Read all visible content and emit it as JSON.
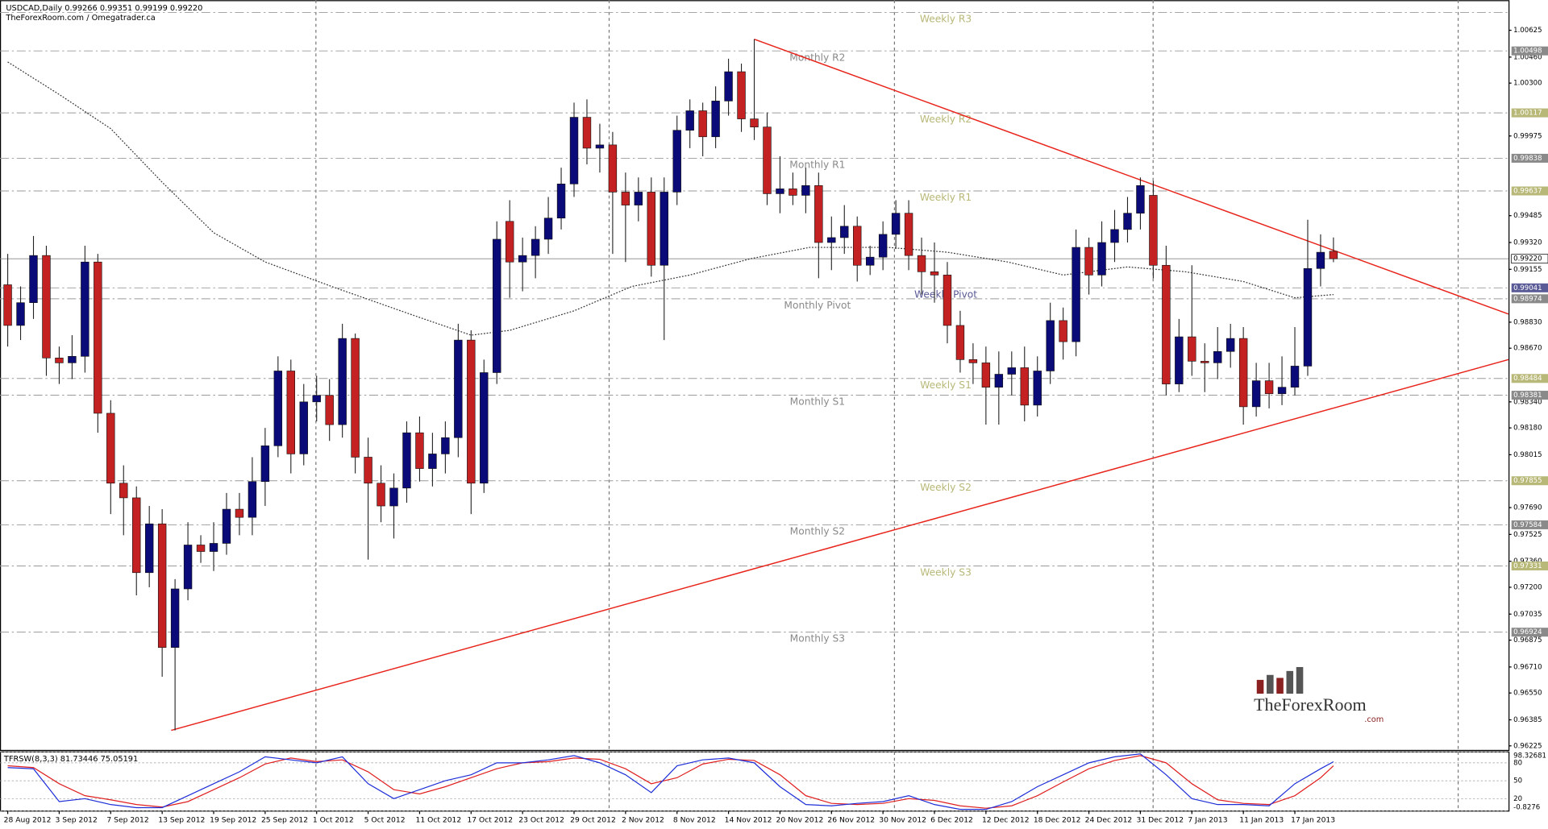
{
  "chart_data": {
    "type": "candlestick",
    "title": "USDCAD,Daily  0.99266 0.99351 0.99199 0.99220",
    "subtitle": "TheForexRoom.com / Omegatrader.ca",
    "logo": {
      "name": "TheForexRoom",
      "suffix": ".com"
    },
    "up_color": "#0a0a78",
    "down_color": "#c42222",
    "xlim": [
      -0.6,
      116.6
    ],
    "ylim": [
      0.962,
      1.0081
    ],
    "xticks": [
      {
        "value": 0,
        "label": "28 Aug 2012"
      },
      {
        "value": 4,
        "label": "3 Sep 2012"
      },
      {
        "value": 8,
        "label": "7 Sep 2012"
      },
      {
        "value": 12,
        "label": "13 Sep 2012"
      },
      {
        "value": 16,
        "label": "19 Sep 2012"
      },
      {
        "value": 20,
        "label": "25 Sep 2012"
      },
      {
        "value": 24,
        "label": "1 Oct 2012"
      },
      {
        "value": 28,
        "label": "5 Oct 2012"
      },
      {
        "value": 32,
        "label": "11 Oct 2012"
      },
      {
        "value": 36,
        "label": "17 Oct 2012"
      },
      {
        "value": 40,
        "label": "23 Oct 2012"
      },
      {
        "value": 44,
        "label": "29 Oct 2012"
      },
      {
        "value": 48,
        "label": "2 Nov 2012"
      },
      {
        "value": 52,
        "label": "8 Nov 2012"
      },
      {
        "value": 56,
        "label": "14 Nov 2012"
      },
      {
        "value": 60,
        "label": "20 Nov 2012"
      },
      {
        "value": 64,
        "label": "26 Nov 2012"
      },
      {
        "value": 68,
        "label": "30 Nov 2012"
      },
      {
        "value": 72,
        "label": "6 Dec 2012"
      },
      {
        "value": 76,
        "label": "12 Dec 2012"
      },
      {
        "value": 80,
        "label": "18 Dec 2012"
      },
      {
        "value": 84,
        "label": "24 Dec 2012"
      },
      {
        "value": 88,
        "label": "31 Dec 2012"
      },
      {
        "value": 92,
        "label": "7 Jan 2013"
      },
      {
        "value": 96,
        "label": "11 Jan 2013"
      },
      {
        "value": 100,
        "label": "17 Jan 2013"
      }
    ],
    "yticks": [
      1.00625,
      {
        "value": 1.0046,
        "label": "1.00460"
      },
      {
        "value": 1.003,
        "label": "1.00300"
      },
      0.99975,
      0.99485,
      {
        "value": 0.9932,
        "label": "0.99320"
      },
      0.99155,
      {
        "value": 0.9883,
        "label": "0.98830"
      },
      {
        "value": 0.9867,
        "label": "0.98670"
      },
      {
        "value": 0.9834,
        "label": "0.98340"
      },
      {
        "value": 0.9818,
        "label": "0.98180"
      },
      0.98015,
      {
        "value": 0.9769,
        "label": "0.97690"
      },
      0.97525,
      {
        "value": 0.9736,
        "label": "0.97360"
      },
      {
        "value": 0.972,
        "label": "0.97200"
      },
      0.97035,
      0.96875,
      {
        "value": 0.9671,
        "label": "0.96710"
      },
      {
        "value": 0.9655,
        "label": "0.96550"
      },
      0.96385,
      0.96225
    ],
    "open": [
      0.9906,
      0.9881,
      0.9895,
      0.9924,
      0.9861,
      0.9858,
      0.9862,
      0.992,
      0.9827,
      0.9784,
      0.9775,
      0.9729,
      0.9759,
      0.9683,
      0.9719,
      0.9746,
      0.9742,
      0.9747,
      0.9768,
      0.9763,
      0.9785,
      0.9807,
      0.9853,
      0.9802,
      0.9834,
      0.9838,
      0.982,
      0.9873,
      0.98,
      0.9784,
      0.977,
      0.9781,
      0.9815,
      0.9793,
      0.9802,
      0.9812,
      0.9872,
      0.9784,
      0.9852,
      0.9945,
      0.992,
      0.9924,
      0.9934,
      0.9947,
      0.9968,
      1.0009,
      0.999,
      0.9992,
      0.9963,
      0.9955,
      0.9963,
      0.9918,
      0.9963,
      1.0001,
      1.0013,
      0.9997,
      1.0019,
      1.0037,
      1.0008,
      1.0003,
      0.9962,
      0.9965,
      0.9961,
      0.9967,
      0.9932,
      0.9935,
      0.9942,
      0.9918,
      0.9923,
      0.9937,
      0.995,
      0.9924,
      0.9914,
      0.9912,
      0.9881,
      0.986,
      0.9858,
      0.9843,
      0.9851,
      0.9855,
      0.9832,
      0.9853,
      0.9884,
      0.9871,
      0.9929,
      0.9912,
      0.9932,
      0.994,
      0.995,
      0.9961,
      0.9918,
      0.9845,
      0.9874,
      0.9859,
      0.9858,
      0.9865,
      0.9873,
      0.9831,
      0.9847,
      0.9839,
      0.9843,
      0.9856,
      0.9916,
      0.99266
    ],
    "high": [
      0.9925,
      0.9905,
      0.9936,
      0.993,
      0.9868,
      0.9875,
      0.993,
      0.9925,
      0.9835,
      0.9795,
      0.9782,
      0.977,
      0.9768,
      0.9725,
      0.976,
      0.9752,
      0.976,
      0.9778,
      0.9778,
      0.98,
      0.9818,
      0.9862,
      0.986,
      0.9845,
      0.985,
      0.9848,
      0.9882,
      0.9876,
      0.9812,
      0.9795,
      0.979,
      0.9822,
      0.9825,
      0.9815,
      0.9822,
      0.9882,
      0.9878,
      0.986,
      0.9945,
      0.9958,
      0.9935,
      0.9942,
      0.996,
      0.9978,
      1.0018,
      1.002,
      1.0005,
      1.0,
      0.9975,
      0.9972,
      0.9972,
      0.9972,
      1.001,
      1.002,
      1.0018,
      1.0028,
      1.0045,
      1.0042,
      1.0057,
      1.0012,
      0.9985,
      0.9975,
      0.9978,
      0.9975,
      0.9948,
      0.9955,
      0.9948,
      0.993,
      0.9945,
      0.9958,
      0.9958,
      0.9935,
      0.9932,
      0.992,
      0.989,
      0.987,
      0.9868,
      0.9865,
      0.9865,
      0.9868,
      0.9862,
      0.9895,
      0.9892,
      0.994,
      0.9935,
      0.9945,
      0.9952,
      0.996,
      0.9972,
      0.997,
      0.993,
      0.9885,
      0.9918,
      0.987,
      0.988,
      0.9882,
      0.988,
      0.9858,
      0.9858,
      0.9862,
      0.988,
      0.9946,
      0.9937,
      0.99351
    ],
    "low": [
      0.9868,
      0.9872,
      0.9885,
      0.985,
      0.9845,
      0.9848,
      0.9852,
      0.9815,
      0.9765,
      0.9752,
      0.9715,
      0.972,
      0.9665,
      0.9632,
      0.9712,
      0.9735,
      0.973,
      0.974,
      0.9752,
      0.9752,
      0.977,
      0.98,
      0.979,
      0.9795,
      0.9822,
      0.981,
      0.9812,
      0.979,
      0.9737,
      0.976,
      0.975,
      0.9772,
      0.9785,
      0.9782,
      0.979,
      0.98,
      0.9765,
      0.9778,
      0.9845,
      0.9898,
      0.9902,
      0.991,
      0.9925,
      0.994,
      0.996,
      0.998,
      0.9975,
      0.9925,
      0.992,
      0.9945,
      0.9911,
      0.9872,
      0.9955,
      0.999,
      0.9985,
      0.999,
      1.001,
      1.0,
      0.9995,
      0.9955,
      0.995,
      0.9955,
      0.995,
      0.991,
      0.9915,
      0.9925,
      0.9908,
      0.9912,
      0.9915,
      0.9928,
      0.9915,
      0.99,
      0.9895,
      0.987,
      0.9852,
      0.9845,
      0.982,
      0.982,
      0.9838,
      0.9822,
      0.9825,
      0.9845,
      0.986,
      0.9862,
      0.99,
      0.9905,
      0.992,
      0.9932,
      0.994,
      0.991,
      0.9838,
      0.984,
      0.985,
      0.984,
      0.9848,
      0.9855,
      0.982,
      0.9825,
      0.983,
      0.9832,
      0.9838,
      0.985,
      0.9905,
      0.99199
    ],
    "close": [
      0.9881,
      0.9895,
      0.9924,
      0.9861,
      0.9858,
      0.9862,
      0.992,
      0.9827,
      0.9784,
      0.9775,
      0.9729,
      0.9759,
      0.9683,
      0.9719,
      0.9746,
      0.9742,
      0.9747,
      0.9768,
      0.9763,
      0.9785,
      0.9807,
      0.9853,
      0.9802,
      0.9834,
      0.9838,
      0.982,
      0.9873,
      0.98,
      0.9784,
      0.977,
      0.9781,
      0.9815,
      0.9793,
      0.9802,
      0.9812,
      0.9872,
      0.9784,
      0.9852,
      0.9934,
      0.992,
      0.9924,
      0.9934,
      0.9947,
      0.9968,
      1.0009,
      0.999,
      0.9992,
      0.9963,
      0.9955,
      0.9963,
      0.9918,
      0.9963,
      1.0001,
      1.0013,
      0.9997,
      1.0019,
      1.0037,
      1.0008,
      1.0003,
      0.9962,
      0.9965,
      0.9961,
      0.9967,
      0.9932,
      0.9935,
      0.9942,
      0.9918,
      0.9923,
      0.9937,
      0.995,
      0.9924,
      0.9914,
      0.9912,
      0.9881,
      0.986,
      0.9858,
      0.9843,
      0.9851,
      0.9855,
      0.9832,
      0.9853,
      0.9884,
      0.9871,
      0.9929,
      0.9912,
      0.9932,
      0.994,
      0.995,
      0.9967,
      0.9918,
      0.9845,
      0.9874,
      0.9859,
      0.9858,
      0.9865,
      0.9873,
      0.9831,
      0.9847,
      0.9839,
      0.9843,
      0.9856,
      0.9916,
      0.9926,
      0.9922
    ],
    "ma": {
      "color": "#333333",
      "x": [
        0,
        4,
        8,
        12,
        16,
        20,
        25.5,
        31.6,
        36,
        39,
        44,
        48.5,
        53,
        57.7,
        62.3,
        68.4,
        73,
        77.7,
        82,
        87,
        91.5,
        96,
        100,
        103
      ],
      "values": [
        1.0043,
        1.0023,
        1.0002,
        0.9969,
        0.9938,
        0.992,
        0.9904,
        0.9887,
        0.9875,
        0.9878,
        0.989,
        0.9905,
        0.9912,
        0.9922,
        0.9929,
        0.9929,
        0.9926,
        0.992,
        0.9912,
        0.9917,
        0.9914,
        0.9908,
        0.9898,
        0.99
      ]
    },
    "trendlines": [
      {
        "color": "#e8231a",
        "x": [
          58,
          116.6
        ],
        "values": [
          1.0057,
          0.9888
        ]
      },
      {
        "color": "#e8231a",
        "x": [
          12.7,
          116.6
        ],
        "values": [
          0.9632,
          0.986
        ]
      }
    ],
    "last_price": {
      "value": 0.9922,
      "label": "0.99220"
    },
    "levels": [
      {
        "name": "Weekly R3",
        "value": 1.00734,
        "color": "#b8b878"
      },
      {
        "name": "Monthly R2",
        "value": 1.00498,
        "label": "1.00498",
        "color": "#8a8a8a"
      },
      {
        "name": "Weekly R2",
        "value": 1.00117,
        "label": "1.00117",
        "color": "#b8b878"
      },
      {
        "name": "Monthly R1",
        "value": 0.99838,
        "label": "0.99838",
        "color": "#8a8a8a"
      },
      {
        "name": "Weekly R1",
        "value": 0.99637,
        "label": "0.99637",
        "color": "#b8b878"
      },
      {
        "name": "Weekly Pivot",
        "value": 0.99041,
        "label": "0.99041",
        "color": "#5a5a96"
      },
      {
        "name": "Monthly Pivot",
        "value": 0.98974,
        "label": "0.98974",
        "color": "#8a8a8a"
      },
      {
        "name": "Weekly S1",
        "value": 0.98484,
        "label": "0.98484",
        "color": "#b8b878"
      },
      {
        "name": "Monthly S1",
        "value": 0.98381,
        "label": "0.98381",
        "color": "#8a8a8a"
      },
      {
        "name": "Weekly S2",
        "value": 0.97855,
        "label": "0.97855",
        "color": "#b8b878"
      },
      {
        "name": "Monthly S2",
        "value": 0.97584,
        "label": "0.97584",
        "color": "#8a8a8a"
      },
      {
        "name": "Weekly S3",
        "value": 0.97331,
        "label": "0.97331",
        "color": "#b8b878"
      },
      {
        "name": "Monthly S3",
        "value": 0.96924,
        "label": "0.96924",
        "color": "#8a8a8a"
      }
    ],
    "stochastic": {
      "title": "TFRSW(8,3,3) 81.73446 75.05191",
      "ylim": [
        -0.8276,
        98.32681
      ],
      "yticks": [
        98.32681,
        80,
        50,
        20,
        {
          "value": -0.8276,
          "label": "-0.8276"
        }
      ],
      "k_color": "#1f2fd8",
      "d_color": "#e02020",
      "x": [
        0,
        2,
        4,
        6,
        8,
        10,
        12,
        14,
        16,
        18,
        20,
        22,
        24,
        26,
        28,
        30,
        32,
        34,
        36,
        38,
        40,
        42,
        44,
        46,
        48,
        50,
        52,
        54,
        56,
        58,
        60,
        62,
        64,
        66,
        68,
        70,
        72,
        74,
        76,
        78,
        80,
        82,
        84,
        86,
        88,
        90,
        92,
        94,
        96,
        98,
        100,
        102,
        103
      ],
      "k": [
        72,
        70,
        15,
        20,
        10,
        5,
        5,
        25,
        45,
        65,
        90,
        85,
        80,
        90,
        45,
        20,
        35,
        50,
        60,
        80,
        80,
        85,
        92,
        80,
        60,
        30,
        75,
        85,
        88,
        80,
        40,
        10,
        8,
        12,
        15,
        25,
        10,
        2,
        2,
        15,
        40,
        60,
        80,
        90,
        95,
        60,
        20,
        10,
        10,
        8,
        45,
        70,
        81.73446
      ],
      "d": [
        75,
        72,
        45,
        25,
        18,
        10,
        6,
        15,
        35,
        55,
        78,
        88,
        82,
        85,
        65,
        35,
        28,
        40,
        55,
        70,
        80,
        82,
        88,
        86,
        70,
        45,
        55,
        78,
        86,
        84,
        60,
        25,
        12,
        10,
        12,
        20,
        17,
        8,
        4,
        8,
        25,
        48,
        70,
        84,
        92,
        80,
        45,
        18,
        12,
        10,
        25,
        55,
        75.05191
      ]
    }
  }
}
